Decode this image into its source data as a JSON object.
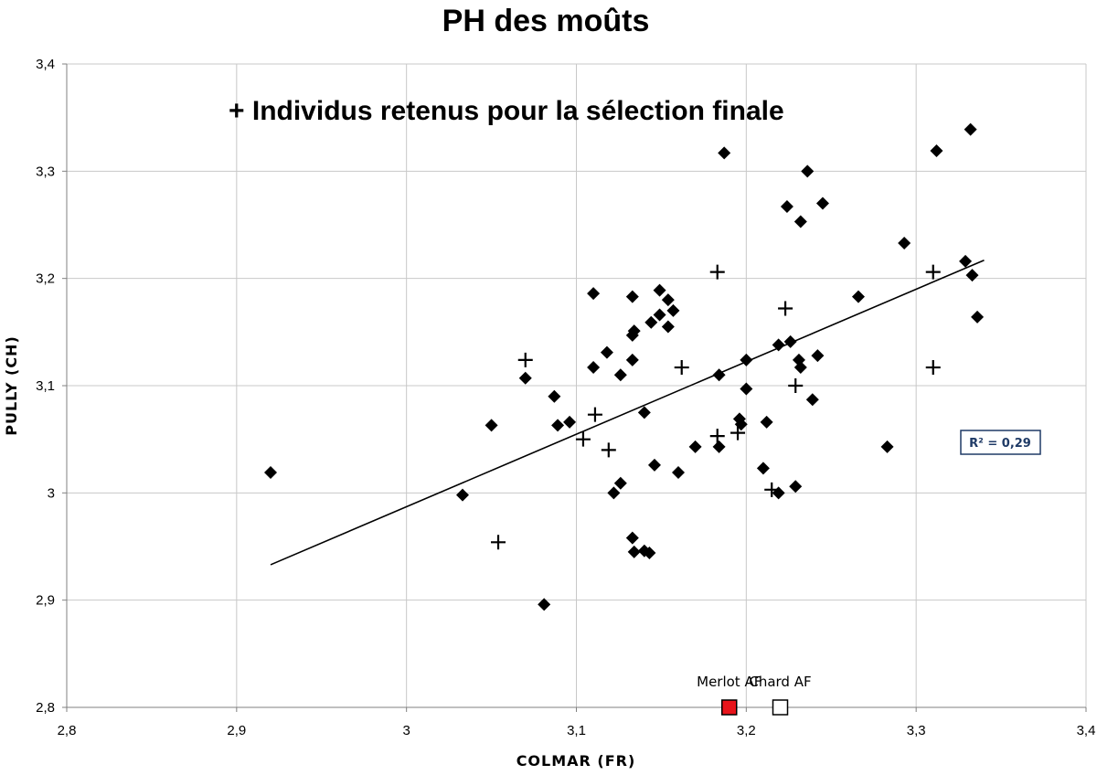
{
  "chart_data": {
    "type": "scatter",
    "title": "PH des moûts",
    "xlabel": "COLMAR (FR)",
    "ylabel": "PULLY (CH)",
    "xlim": [
      2.8,
      3.4
    ],
    "ylim": [
      2.8,
      3.4
    ],
    "x_ticks": [
      2.8,
      2.9,
      3.0,
      3.1,
      3.2,
      3.3,
      3.4
    ],
    "y_ticks": [
      2.8,
      2.9,
      3.0,
      3.1,
      3.2,
      3.3,
      3.4
    ],
    "x_tick_labels": [
      "2,8",
      "2,9",
      "3",
      "3,1",
      "3,2",
      "3,3",
      "3,4"
    ],
    "y_tick_labels": [
      "2,8",
      "2,9",
      "3",
      "3,1",
      "3,2",
      "3,3",
      "3,4"
    ],
    "grid": true,
    "annotation": "+  Individus retenus pour la sélection finale",
    "r2_label": "R² = 0,29",
    "trendline": {
      "x": [
        2.92,
        3.34
      ],
      "y": [
        2.933,
        3.217
      ]
    },
    "series": [
      {
        "marker": "diamond",
        "color": "#000000",
        "points": [
          [
            2.92,
            3.019
          ],
          [
            3.033,
            2.998
          ],
          [
            3.05,
            3.063
          ],
          [
            3.07,
            3.107
          ],
          [
            3.081,
            2.896
          ],
          [
            3.087,
            3.09
          ],
          [
            3.089,
            3.063
          ],
          [
            3.096,
            3.066
          ],
          [
            3.11,
            3.186
          ],
          [
            3.11,
            3.117
          ],
          [
            3.118,
            3.131
          ],
          [
            3.122,
            3.0
          ],
          [
            3.126,
            3.11
          ],
          [
            3.126,
            3.009
          ],
          [
            3.133,
            3.183
          ],
          [
            3.133,
            3.147
          ],
          [
            3.133,
            3.124
          ],
          [
            3.134,
            3.151
          ],
          [
            3.133,
            2.958
          ],
          [
            3.134,
            2.945
          ],
          [
            3.14,
            3.075
          ],
          [
            3.14,
            2.946
          ],
          [
            3.143,
            2.944
          ],
          [
            3.144,
            3.159
          ],
          [
            3.146,
            3.026
          ],
          [
            3.149,
            3.189
          ],
          [
            3.149,
            3.166
          ],
          [
            3.154,
            3.18
          ],
          [
            3.154,
            3.155
          ],
          [
            3.157,
            3.17
          ],
          [
            3.16,
            3.019
          ],
          [
            3.17,
            3.043
          ],
          [
            3.184,
            3.11
          ],
          [
            3.184,
            3.043
          ],
          [
            3.187,
            3.317
          ],
          [
            3.2,
            3.124
          ],
          [
            3.2,
            3.097
          ],
          [
            3.196,
            3.069
          ],
          [
            3.197,
            3.064
          ],
          [
            3.21,
            3.023
          ],
          [
            3.212,
            3.066
          ],
          [
            3.219,
            3.0
          ],
          [
            3.219,
            3.138
          ],
          [
            3.224,
            3.267
          ],
          [
            3.226,
            3.141
          ],
          [
            3.229,
            3.006
          ],
          [
            3.231,
            3.124
          ],
          [
            3.232,
            3.253
          ],
          [
            3.232,
            3.117
          ],
          [
            3.236,
            3.3
          ],
          [
            3.239,
            3.087
          ],
          [
            3.242,
            3.128
          ],
          [
            3.245,
            3.27
          ],
          [
            3.266,
            3.183
          ],
          [
            3.283,
            3.043
          ],
          [
            3.293,
            3.233
          ],
          [
            3.312,
            3.319
          ],
          [
            3.329,
            3.216
          ],
          [
            3.332,
            3.339
          ],
          [
            3.333,
            3.203
          ],
          [
            3.336,
            3.164
          ]
        ]
      },
      {
        "name": "Individus retenus pour la sélection finale",
        "marker": "plus",
        "color": "#000000",
        "points": [
          [
            3.054,
            2.954
          ],
          [
            3.07,
            3.124
          ],
          [
            3.104,
            3.05
          ],
          [
            3.111,
            3.073
          ],
          [
            3.119,
            3.04
          ],
          [
            3.162,
            3.117
          ],
          [
            3.183,
            3.206
          ],
          [
            3.183,
            3.053
          ],
          [
            3.195,
            3.056
          ],
          [
            3.215,
            3.003
          ],
          [
            3.223,
            3.172
          ],
          [
            3.229,
            3.1
          ],
          [
            3.31,
            3.206
          ],
          [
            3.31,
            3.117
          ]
        ]
      }
    ],
    "reference_points": [
      {
        "label": "Merlot AF",
        "x": 3.19,
        "y": 2.8,
        "fill": "#e8141b",
        "stroke": "#000000"
      },
      {
        "label": "Chard AF",
        "x": 3.22,
        "y": 2.8,
        "fill": "#ffffff",
        "stroke": "#000000"
      }
    ]
  }
}
